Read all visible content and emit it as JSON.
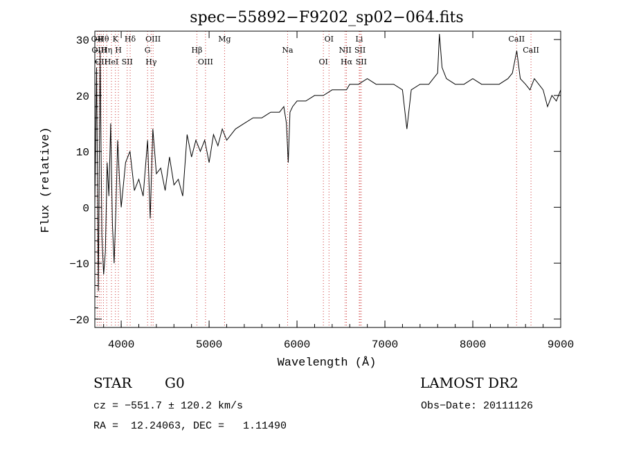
{
  "chart_data": {
    "type": "line",
    "title": "spec−55892−F9202_sp02−064.fits",
    "xlabel": "Wavelength (Å)",
    "ylabel": "Flux (relative)",
    "xlim": [
      3700,
      9000
    ],
    "ylim": [
      -21.5,
      31.5
    ],
    "xticks": [
      4000,
      5000,
      6000,
      7000,
      8000,
      9000
    ],
    "yticks": [
      -20,
      -10,
      0,
      10,
      20,
      30
    ],
    "grid": false,
    "series": [
      {
        "name": "flux",
        "x": [
          3700,
          3720,
          3740,
          3760,
          3780,
          3800,
          3820,
          3840,
          3860,
          3880,
          3900,
          3920,
          3940,
          3960,
          3980,
          4000,
          4050,
          4100,
          4150,
          4200,
          4250,
          4300,
          4330,
          4360,
          4400,
          4450,
          4500,
          4550,
          4600,
          4650,
          4700,
          4750,
          4800,
          4850,
          4900,
          4950,
          5000,
          5050,
          5100,
          5150,
          5200,
          5300,
          5400,
          5500,
          5600,
          5700,
          5800,
          5850,
          5880,
          5900,
          5920,
          5950,
          6000,
          6100,
          6200,
          6300,
          6400,
          6500,
          6563,
          6600,
          6700,
          6800,
          6900,
          7000,
          7100,
          7200,
          7250,
          7300,
          7400,
          7500,
          7550,
          7600,
          7620,
          7650,
          7700,
          7800,
          7900,
          8000,
          8100,
          8200,
          8300,
          8400,
          8450,
          8500,
          8540,
          8600,
          8650,
          8700,
          8750,
          8800,
          8850,
          8900,
          8950,
          9000
        ],
        "values": [
          0,
          25,
          -15,
          28,
          -5,
          -12,
          -8,
          8,
          2,
          15,
          -3,
          -10,
          0,
          12,
          5,
          0,
          8,
          10,
          3,
          5,
          2,
          12,
          -2,
          14,
          6,
          7,
          3,
          9,
          4,
          5,
          2,
          13,
          9,
          12,
          10,
          12,
          8,
          13,
          11,
          14,
          12,
          14,
          15,
          16,
          16,
          17,
          17,
          18,
          15,
          8,
          17,
          18,
          19,
          19,
          20,
          20,
          21,
          21,
          21,
          22,
          22,
          23,
          22,
          22,
          22,
          21,
          14,
          21,
          22,
          22,
          23,
          24,
          31,
          25,
          23,
          22,
          22,
          23,
          22,
          22,
          22,
          23,
          24,
          28,
          23,
          22,
          21,
          23,
          22,
          21,
          18,
          20,
          19,
          21
        ]
      }
    ],
    "line_markers": [
      {
        "wavelength": 3727,
        "label": "OII"
      },
      {
        "wavelength": 3750,
        "label": "OIII"
      },
      {
        "wavelength": 3771,
        "label": "OII"
      },
      {
        "wavelength": 3798,
        "label": "Hθ"
      },
      {
        "wavelength": 3835,
        "label": "Hη"
      },
      {
        "wavelength": 3889,
        "label": "HeI"
      },
      {
        "wavelength": 3934,
        "label": "K"
      },
      {
        "wavelength": 3968,
        "label": "H"
      },
      {
        "wavelength": 4068,
        "label": "SII"
      },
      {
        "wavelength": 4102,
        "label": "Hδ"
      },
      {
        "wavelength": 4300,
        "label": "G"
      },
      {
        "wavelength": 4341,
        "label": "Hγ"
      },
      {
        "wavelength": 4363,
        "label": "OIII"
      },
      {
        "wavelength": 4861,
        "label": "Hβ"
      },
      {
        "wavelength": 4959,
        "label": "OIII"
      },
      {
        "wavelength": 5176,
        "label": "Mg"
      },
      {
        "wavelength": 5893,
        "label": "Na"
      },
      {
        "wavelength": 6300,
        "label": "OI"
      },
      {
        "wavelength": 6364,
        "label": "OI"
      },
      {
        "wavelength": 6548,
        "label": "NII"
      },
      {
        "wavelength": 6563,
        "label": "Hα"
      },
      {
        "wavelength": 6708,
        "label": "Li"
      },
      {
        "wavelength": 6717,
        "label": "SII"
      },
      {
        "wavelength": 6731,
        "label": "SII"
      },
      {
        "wavelength": 8498,
        "label": "CaII"
      },
      {
        "wavelength": 8662,
        "label": "CaII"
      }
    ],
    "marker_color": "#cc3333",
    "line_color": "#000000"
  },
  "info": {
    "object_class": "STAR",
    "subclass": "G0",
    "survey": "LAMOST DR2",
    "redshift": "cz = −551.7 ± 120.2 km/s",
    "obs_date": "Obs−Date: 20111126",
    "coords": "RA =  12.24063, DEC =   1.11490"
  }
}
